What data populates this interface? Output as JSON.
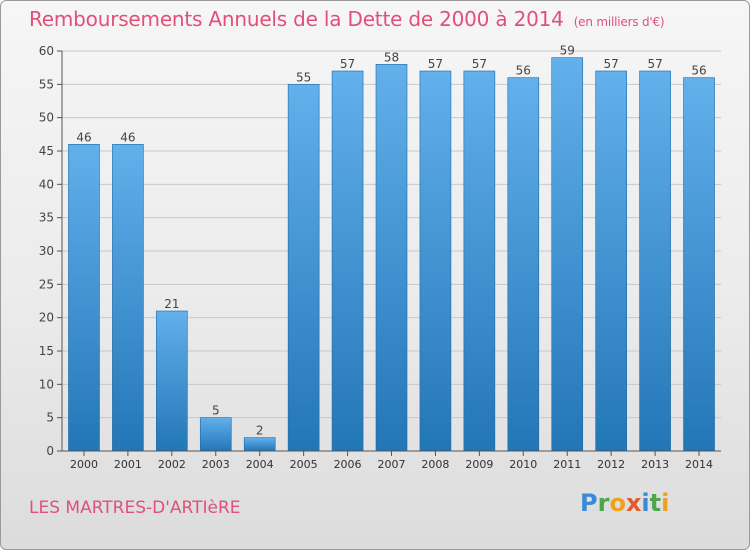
{
  "header": {
    "title": "Remboursements Annuels de la Dette de 2000 à 2014",
    "subtitle": "(en milliers d'€)"
  },
  "footer": {
    "commune": "LES MARTRES-D'ARTIèRE",
    "logo": [
      "P",
      "r",
      "o",
      "x",
      "i",
      "t",
      "i"
    ]
  },
  "colors": {
    "title": "#e0507a",
    "bar_light": "#62b0ec",
    "bar_dark": "#2376b6",
    "grid": "#c8c8c8",
    "axis": "#555555"
  },
  "chart_data": {
    "type": "bar",
    "title": "Remboursements Annuels de la Dette de 2000 à 2014",
    "xlabel": "",
    "ylabel": "(en milliers d'€)",
    "categories": [
      "2000",
      "2001",
      "2002",
      "2003",
      "2004",
      "2005",
      "2006",
      "2007",
      "2008",
      "2009",
      "2010",
      "2011",
      "2012",
      "2013",
      "2014"
    ],
    "values": [
      46,
      46,
      21,
      5,
      2,
      55,
      57,
      58,
      57,
      57,
      56,
      59,
      57,
      57,
      56
    ],
    "ylim": [
      0,
      60
    ],
    "yticks": [
      0,
      5,
      10,
      15,
      20,
      25,
      30,
      35,
      40,
      45,
      50,
      55,
      60
    ],
    "grid": true,
    "data_labels": true
  }
}
